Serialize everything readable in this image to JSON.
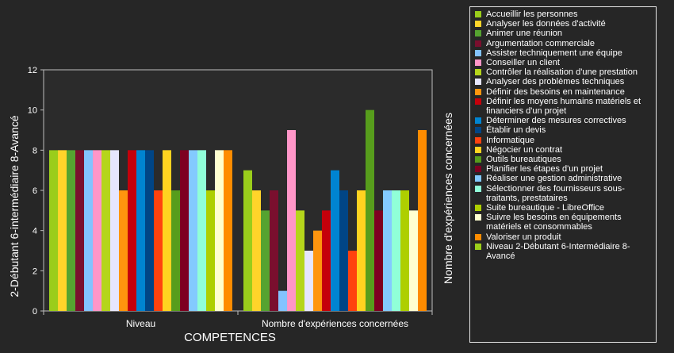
{
  "chart_data": {
    "type": "bar",
    "xlabel": "COMPETENCES",
    "ylabel_left": "2-Débutant 6-intermédiaire 8-Avancé",
    "ylabel_right": "Nombre d'expériences concernées",
    "ylim": [
      0,
      12
    ],
    "yticks": [
      "0",
      "2",
      "4",
      "6",
      "8",
      "10",
      "12"
    ],
    "grid": false,
    "legend_position": "right",
    "categories": [
      "Niveau",
      "Nombre d'expériences concernées"
    ],
    "series": [
      {
        "name": "Accueillir les personnes",
        "color": "#9acd1b",
        "values": [
          8,
          7
        ]
      },
      {
        "name": "Analyser les données d'activité",
        "color": "#ffd42a",
        "values": [
          8,
          6
        ]
      },
      {
        "name": "Animer une réunion",
        "color": "#55a330",
        "values": [
          8,
          5
        ]
      },
      {
        "name": "Argumentation commerciale",
        "color": "#7a0f2e",
        "values": [
          8,
          6
        ]
      },
      {
        "name": "Assister techniquement une équipe",
        "color": "#83c3ff",
        "values": [
          8,
          1
        ]
      },
      {
        "name": "Conseiller un client",
        "color": "#ff96c8",
        "values": [
          8,
          9
        ]
      },
      {
        "name": "Contrôler la réalisation d'une prestation",
        "color": "#b5d51b",
        "values": [
          8,
          5
        ]
      },
      {
        "name": "Analyser des problèmes techniques",
        "color": "#e6e6ff",
        "values": [
          8,
          3
        ]
      },
      {
        "name": "Définir des besoins en maintenance",
        "color": "#ff950e",
        "values": [
          6,
          4
        ]
      },
      {
        "name": "Définir les moyens humains matériels et financiers d'un projet",
        "color": "#c5000b",
        "values": [
          8,
          5
        ]
      },
      {
        "name": "Déterminer des mesures correctives",
        "color": "#0084d1",
        "values": [
          8,
          7
        ]
      },
      {
        "name": "Établir un devis",
        "color": "#004586",
        "values": [
          8,
          6
        ]
      },
      {
        "name": "Informatique",
        "color": "#ff420e",
        "values": [
          6,
          3
        ]
      },
      {
        "name": "Négocier un contrat",
        "color": "#ffd320",
        "values": [
          8,
          6
        ]
      },
      {
        "name": "Outils bureautiques",
        "color": "#579d1c",
        "values": [
          6,
          10
        ]
      },
      {
        "name": "Planifier les étapes d'un projet",
        "color": "#7e0021",
        "values": [
          8,
          5
        ]
      },
      {
        "name": "Réaliser une gestion administrative",
        "color": "#83caff",
        "values": [
          8,
          6
        ]
      },
      {
        "name": "Sélectionner des fournisseurs sous-traitants, prestataires",
        "color": "#90ffd8",
        "values": [
          8,
          6
        ]
      },
      {
        "name": "Suite bureautique - LibreOffice",
        "color": "#aecf00",
        "values": [
          6,
          6
        ]
      },
      {
        "name": "Suivre les besoins en équipements matériels et consommables",
        "color": "#ffffd0",
        "values": [
          8,
          5
        ]
      },
      {
        "name": "Valoriser un produit",
        "color": "#ff8c00",
        "values": [
          8,
          9
        ]
      },
      {
        "name": "Niveau 2-Débutant 6-Intermédiaire 8-Avancé",
        "color": "#9ccf1a",
        "values": [
          null,
          null
        ]
      }
    ]
  }
}
